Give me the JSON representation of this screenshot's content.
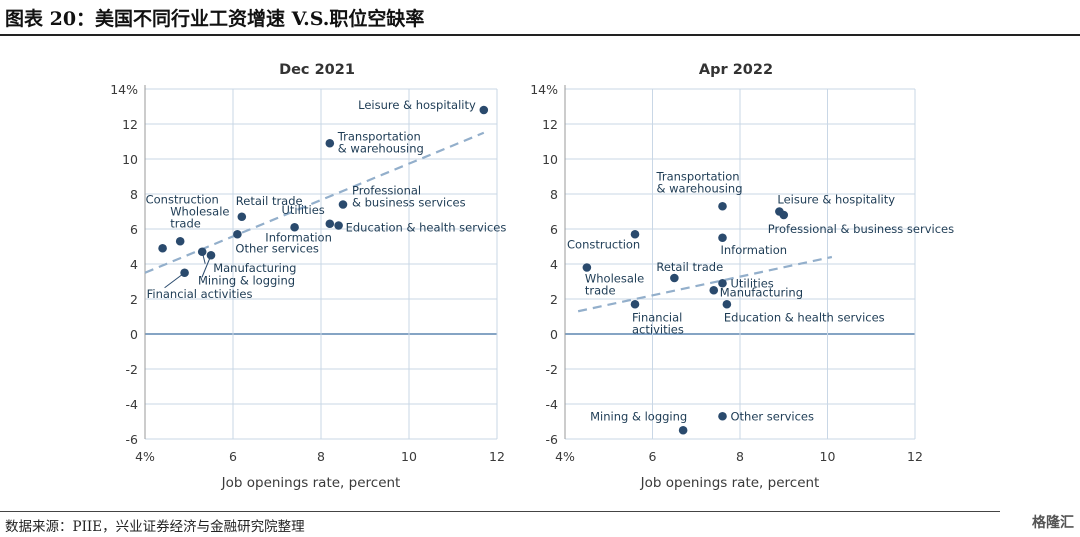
{
  "header": {
    "title": "图表 20：美国不同行业工资增速 V.S.职位空缺率"
  },
  "footer": {
    "source": "数据来源：PIIE，兴业证券经济与金融研究院整理",
    "watermark": "格隆汇"
  },
  "chart_data": [
    {
      "type": "scatter",
      "title": "Dec 2021",
      "xlabel": "Job openings rate, percent",
      "ylabel": "",
      "xlim": [
        4,
        12
      ],
      "ylim": [
        -6,
        14
      ],
      "xticks": [
        "4%",
        "6",
        "8",
        "10",
        "12"
      ],
      "yticks": [
        "14%",
        "12",
        "10",
        "8",
        "6",
        "4",
        "2",
        "0",
        "-2",
        "-4",
        "-6"
      ],
      "points": [
        {
          "label": "Leisure & hospitality",
          "x": 11.7,
          "y": 12.8
        },
        {
          "label": "Transportation & warehousing",
          "x": 8.2,
          "y": 10.9
        },
        {
          "label": "Professional & business services",
          "x": 8.5,
          "y": 7.4
        },
        {
          "label": "Utilities",
          "x": 8.2,
          "y": 6.3
        },
        {
          "label": "Education & health services",
          "x": 8.4,
          "y": 6.2
        },
        {
          "label": "Information",
          "x": 7.4,
          "y": 6.1
        },
        {
          "label": "Retail trade",
          "x": 6.2,
          "y": 6.7
        },
        {
          "label": "Other services",
          "x": 6.1,
          "y": 5.7
        },
        {
          "label": "Construction",
          "x": 4.4,
          "y": 4.9
        },
        {
          "label": "Wholesale trade",
          "x": 4.8,
          "y": 5.3
        },
        {
          "label": "Manufacturing",
          "x": 5.3,
          "y": 4.7
        },
        {
          "label": "Mining & logging",
          "x": 5.5,
          "y": 4.5
        },
        {
          "label": "Financial activities",
          "x": 4.9,
          "y": 3.5
        }
      ],
      "trendline": {
        "x": [
          4,
          11.7
        ],
        "y": [
          3.5,
          11.5
        ],
        "style": "dashed"
      }
    },
    {
      "type": "scatter",
      "title": "Apr 2022",
      "xlabel": "Job openings rate, percent",
      "ylabel": "",
      "xlim": [
        4,
        12
      ],
      "ylim": [
        -6,
        14
      ],
      "xticks": [
        "4%",
        "6",
        "8",
        "10",
        "12"
      ],
      "yticks": [
        "14%",
        "12",
        "10",
        "8",
        "6",
        "4",
        "2",
        "0",
        "-2",
        "-4",
        "-6"
      ],
      "points": [
        {
          "label": "Leisure & hospitality",
          "x": 8.9,
          "y": 7.0
        },
        {
          "label": "Professional & business services",
          "x": 9.0,
          "y": 6.8
        },
        {
          "label": "Transportation & warehousing",
          "x": 7.6,
          "y": 7.3
        },
        {
          "label": "Construction",
          "x": 5.6,
          "y": 5.7
        },
        {
          "label": "Information",
          "x": 7.6,
          "y": 5.5
        },
        {
          "label": "Wholesale trade",
          "x": 4.5,
          "y": 3.8
        },
        {
          "label": "Retail trade",
          "x": 6.5,
          "y": 3.2
        },
        {
          "label": "Utilities",
          "x": 7.6,
          "y": 2.9
        },
        {
          "label": "Manufacturing",
          "x": 7.4,
          "y": 2.5
        },
        {
          "label": "Financial activities",
          "x": 5.6,
          "y": 1.7
        },
        {
          "label": "Education & health services",
          "x": 7.7,
          "y": 1.7
        },
        {
          "label": "Mining & logging",
          "x": 6.7,
          "y": -5.5
        },
        {
          "label": "Other services",
          "x": 7.6,
          "y": -4.7
        }
      ],
      "trendline": {
        "x": [
          4.3,
          10.1
        ],
        "y": [
          1.3,
          4.4
        ],
        "style": "dashed"
      }
    }
  ]
}
